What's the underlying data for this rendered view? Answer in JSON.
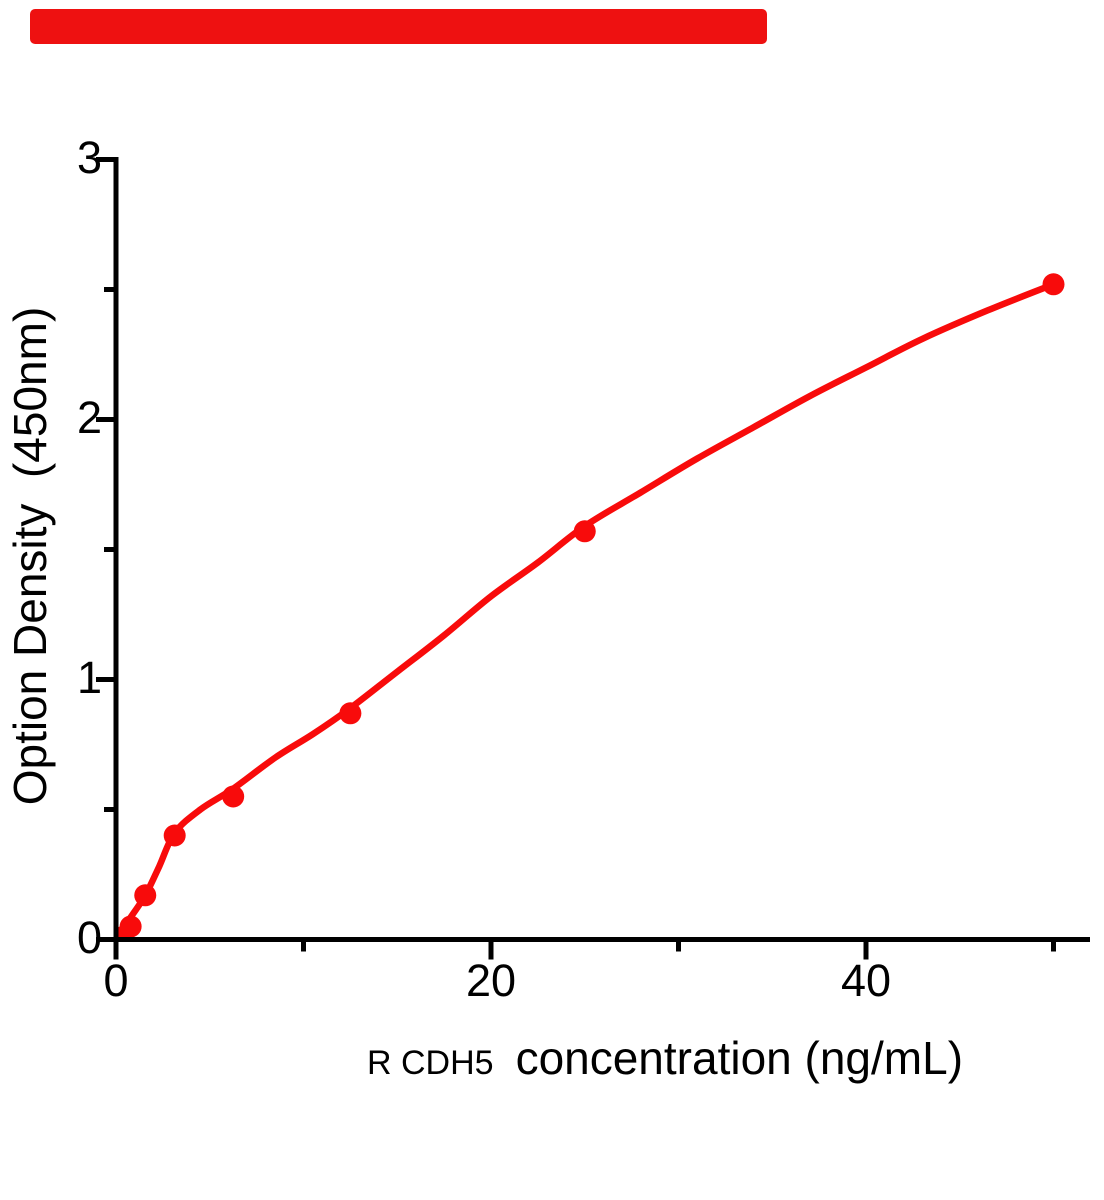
{
  "banner": {
    "color": "#ee1111"
  },
  "chart_data": {
    "type": "scatter",
    "title": "",
    "ylabel": "Option Density  (450nm)",
    "xlabel_prefix": "R CDH5",
    "xlabel_main": "concentration (ng/mL)",
    "colors": {
      "curve": "#f80b0b",
      "points": "#f80b0b",
      "axis": "#000000"
    },
    "grid": false,
    "legend": null,
    "x_axis": {
      "min": 0,
      "max": 52,
      "major_ticks": [
        {
          "value": 0,
          "label": "0"
        },
        {
          "value": 20,
          "label": "20"
        },
        {
          "value": 40,
          "label": "40"
        }
      ],
      "minor_tick_values": [
        10,
        30,
        50
      ]
    },
    "y_axis": {
      "min": 0,
      "max": 3,
      "major_ticks": [
        {
          "value": 0,
          "label": "0"
        },
        {
          "value": 1,
          "label": "1"
        },
        {
          "value": 2,
          "label": "2"
        },
        {
          "value": 3,
          "label": "3"
        }
      ],
      "minor_tick_values": [
        0.5,
        1.5,
        2.5
      ]
    },
    "points": [
      {
        "x": 0.39,
        "y": 0.01
      },
      {
        "x": 0.78,
        "y": 0.05
      },
      {
        "x": 1.56,
        "y": 0.17
      },
      {
        "x": 3.13,
        "y": 0.4
      },
      {
        "x": 6.25,
        "y": 0.55
      },
      {
        "x": 12.5,
        "y": 0.87
      },
      {
        "x": 25,
        "y": 1.57
      },
      {
        "x": 50,
        "y": 2.52
      }
    ],
    "curve_samples": [
      {
        "x": 0,
        "y": 0
      },
      {
        "x": 0.78,
        "y": 0.085
      },
      {
        "x": 1.56,
        "y": 0.17
      },
      {
        "x": 2.3,
        "y": 0.28
      },
      {
        "x": 3.13,
        "y": 0.41
      },
      {
        "x": 4.5,
        "y": 0.5
      },
      {
        "x": 6.25,
        "y": 0.58
      },
      {
        "x": 8.5,
        "y": 0.7
      },
      {
        "x": 10.5,
        "y": 0.79
      },
      {
        "x": 12.5,
        "y": 0.89
      },
      {
        "x": 15,
        "y": 1.03
      },
      {
        "x": 17.5,
        "y": 1.17
      },
      {
        "x": 20,
        "y": 1.32
      },
      {
        "x": 22.5,
        "y": 1.45
      },
      {
        "x": 25,
        "y": 1.59
      },
      {
        "x": 28,
        "y": 1.72
      },
      {
        "x": 31,
        "y": 1.85
      },
      {
        "x": 34,
        "y": 1.97
      },
      {
        "x": 37,
        "y": 2.09
      },
      {
        "x": 40,
        "y": 2.2
      },
      {
        "x": 43,
        "y": 2.31
      },
      {
        "x": 46.5,
        "y": 2.42
      },
      {
        "x": 50,
        "y": 2.52
      }
    ]
  }
}
